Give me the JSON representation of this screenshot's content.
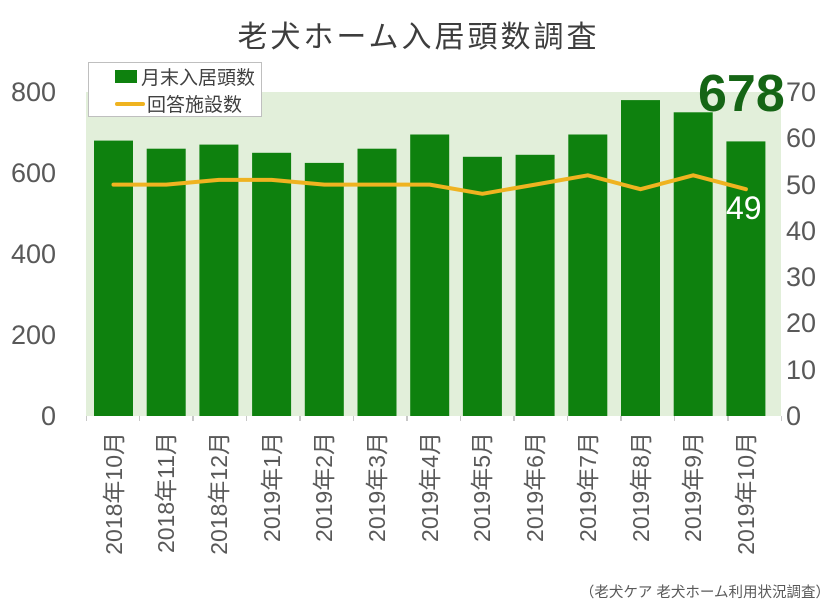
{
  "title": "老犬ホーム入居頭数調査",
  "annotations": {
    "latest_bar_value": "678",
    "latest_line_value": "49"
  },
  "source_note": "（老犬ケア 老犬ホーム利用状況調査）",
  "colors": {
    "bar": "#0e810e",
    "line": "#efb320",
    "plot_background": "#e2efda",
    "axis_text": "#595959",
    "annotation_green": "#156515"
  },
  "chart_data": {
    "type": "bar",
    "subtype": "bar-line-combo",
    "title": "老犬ホーム入居頭数調査",
    "categories": [
      "2018年10月",
      "2018年11月",
      "2018年12月",
      "2019年1月",
      "2019年2月",
      "2019年3月",
      "2019年4月",
      "2019年5月",
      "2019年6月",
      "2019年7月",
      "2019年8月",
      "2019年9月",
      "2019年10月"
    ],
    "series": [
      {
        "name": "月末入居頭数",
        "type": "bar",
        "axis": "left",
        "color": "#0e810e",
        "values": [
          680,
          660,
          670,
          650,
          625,
          660,
          695,
          640,
          645,
          695,
          780,
          750,
          678
        ]
      },
      {
        "name": "回答施設数",
        "type": "line",
        "axis": "right",
        "color": "#efb320",
        "values": [
          50,
          50,
          51,
          51,
          50,
          50,
          50,
          48,
          50,
          52,
          49,
          52,
          49
        ]
      }
    ],
    "left_axis": {
      "ticks": [
        0,
        200,
        400,
        600,
        800
      ],
      "range": [
        0,
        800
      ]
    },
    "right_axis": {
      "ticks": [
        0,
        10,
        20,
        30,
        40,
        50,
        60,
        70
      ],
      "range": [
        0,
        70
      ]
    },
    "grid": false,
    "legend_position": "top-left",
    "legend_entries": [
      "月末入居頭数",
      "回答施設数"
    ],
    "plot_bg": "#e2efda"
  }
}
